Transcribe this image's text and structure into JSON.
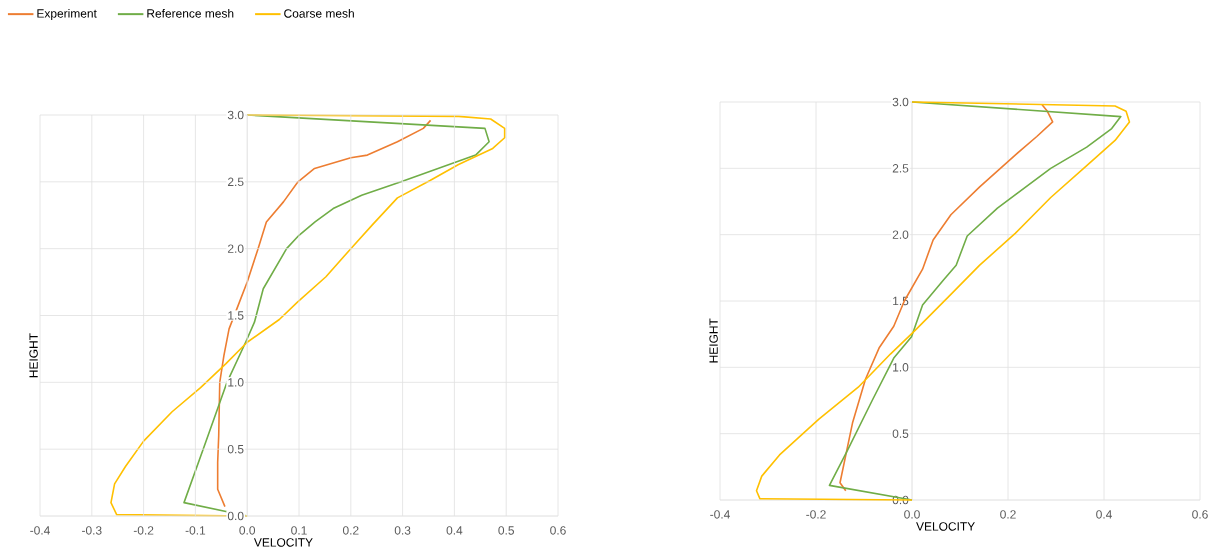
{
  "chart_data": [
    {
      "type": "line",
      "xlabel": "VELOCITY",
      "ylabel": "HEIGHT",
      "xlim": [
        -0.4,
        0.6
      ],
      "ylim": [
        0,
        3
      ],
      "xticks": [
        {
          "value": -0.4,
          "label": "-0.4"
        },
        {
          "value": -0.3,
          "label": "-0.3"
        },
        {
          "value": -0.2,
          "label": "-0.2"
        },
        {
          "value": -0.1,
          "label": "-0.1"
        },
        {
          "value": 0,
          "label": "0.0"
        },
        {
          "value": 0.1,
          "label": "0.1"
        },
        {
          "value": 0.2,
          "label": "0.2"
        },
        {
          "value": 0.3,
          "label": "0.3"
        },
        {
          "value": 0.4,
          "label": "0.4"
        },
        {
          "value": 0.5,
          "label": "0.5"
        },
        {
          "value": 0.6,
          "label": "0.6"
        }
      ],
      "yticks": [
        {
          "value": 0,
          "label": "0.0"
        },
        {
          "value": 0.5,
          "label": "0.5"
        },
        {
          "value": 1,
          "label": "1.0"
        },
        {
          "value": 1.5,
          "label": "1.5"
        },
        {
          "value": 2,
          "label": "2.0"
        },
        {
          "value": 2.5,
          "label": "2.5"
        },
        {
          "value": 3,
          "label": "3.0"
        }
      ],
      "grid": true,
      "legend": "top",
      "marker": "none",
      "line_style": "solid",
      "series": [
        {
          "name": "Experiment",
          "color": "#ed7d31",
          "x": [
            -0.043,
            -0.057,
            -0.057,
            -0.055,
            -0.054,
            -0.053,
            -0.045,
            -0.035,
            -0.015,
            0.0,
            0.021,
            0.037,
            0.07,
            0.098,
            0.13,
            0.2,
            0.232,
            0.29,
            0.34,
            0.354
          ],
          "values": [
            0.07,
            0.2,
            0.4,
            0.6,
            0.8,
            1.0,
            1.2,
            1.4,
            1.6,
            1.75,
            2.0,
            2.2,
            2.35,
            2.5,
            2.6,
            2.68,
            2.7,
            2.8,
            2.9,
            2.96
          ]
        },
        {
          "name": "Reference mesh",
          "color": "#70ad47",
          "x": [
            0.0,
            -0.122,
            -0.085,
            -0.039,
            -0.003,
            0.014,
            0.031,
            0.076,
            0.1,
            0.131,
            0.166,
            0.221,
            0.297,
            0.441,
            0.467,
            0.459,
            0.0
          ],
          "values": [
            0.0,
            0.1,
            0.5,
            1.0,
            1.3,
            1.45,
            1.7,
            2.0,
            2.1,
            2.2,
            2.3,
            2.4,
            2.5,
            2.7,
            2.8,
            2.9,
            3.0
          ]
        },
        {
          "name": "Coarse mesh",
          "color": "#ffc000",
          "x": [
            0.0,
            -0.252,
            -0.263,
            -0.256,
            -0.235,
            -0.2,
            -0.145,
            -0.09,
            -0.041,
            0.0,
            0.062,
            0.097,
            0.152,
            0.2,
            0.242,
            0.29,
            0.353,
            0.408,
            0.474,
            0.497,
            0.497,
            0.47,
            0.408,
            0.0
          ],
          "values": [
            0.0,
            0.01,
            0.1,
            0.24,
            0.37,
            0.56,
            0.78,
            0.96,
            1.14,
            1.3,
            1.47,
            1.6,
            1.79,
            2.0,
            2.18,
            2.38,
            2.51,
            2.63,
            2.75,
            2.83,
            2.9,
            2.97,
            2.99,
            3.0
          ]
        }
      ]
    },
    {
      "type": "line",
      "xlabel": "VELOCITY",
      "ylabel": "HEIGHT",
      "xlim": [
        -0.4,
        0.6
      ],
      "ylim": [
        0,
        3
      ],
      "xticks": [
        {
          "value": -0.4,
          "label": "-0.4"
        },
        {
          "value": -0.2,
          "label": "-0.2"
        },
        {
          "value": 0,
          "label": "0.0"
        },
        {
          "value": 0.2,
          "label": "0.2"
        },
        {
          "value": 0.4,
          "label": "0.4"
        },
        {
          "value": 0.6,
          "label": "0.6"
        }
      ],
      "yticks": [
        {
          "value": 0,
          "label": "0.0"
        },
        {
          "value": 0.5,
          "label": "0.5"
        },
        {
          "value": 1,
          "label": "1.0"
        },
        {
          "value": 1.5,
          "label": "1.5"
        },
        {
          "value": 2,
          "label": "2.0"
        },
        {
          "value": 2.5,
          "label": "2.5"
        },
        {
          "value": 3,
          "label": "3.0"
        }
      ],
      "grid": true,
      "marker": "none",
      "line_style": "solid",
      "series": [
        {
          "color": "#ed7d31",
          "x": [
            -0.138,
            -0.15,
            -0.124,
            -0.097,
            -0.068,
            -0.038,
            -0.016,
            0.022,
            0.044,
            0.081,
            0.141,
            0.215,
            0.26,
            0.293,
            0.282,
            0.271
          ],
          "values": [
            0.07,
            0.13,
            0.58,
            0.91,
            1.15,
            1.31,
            1.5,
            1.74,
            1.96,
            2.15,
            2.36,
            2.6,
            2.74,
            2.85,
            2.93,
            2.98
          ]
        },
        {
          "color": "#70ad47",
          "x": [
            0.0,
            -0.172,
            -0.135,
            -0.083,
            -0.038,
            -0.001,
            0.022,
            0.066,
            0.092,
            0.115,
            0.178,
            0.289,
            0.364,
            0.416,
            0.435,
            0.0
          ],
          "values": [
            0.0,
            0.11,
            0.37,
            0.75,
            1.07,
            1.23,
            1.47,
            1.66,
            1.77,
            1.99,
            2.2,
            2.5,
            2.66,
            2.8,
            2.89,
            3.0
          ]
        },
        {
          "color": "#ffc000",
          "x": [
            0.0,
            -0.317,
            -0.324,
            -0.313,
            -0.276,
            -0.194,
            -0.112,
            -0.045,
            0.007,
            0.081,
            0.141,
            0.215,
            0.289,
            0.364,
            0.423,
            0.453,
            0.446,
            0.423,
            0.0
          ],
          "values": [
            0.0,
            0.01,
            0.07,
            0.18,
            0.34,
            0.61,
            0.85,
            1.1,
            1.28,
            1.55,
            1.77,
            2.01,
            2.28,
            2.52,
            2.71,
            2.85,
            2.93,
            2.97,
            3.0
          ]
        }
      ]
    }
  ]
}
